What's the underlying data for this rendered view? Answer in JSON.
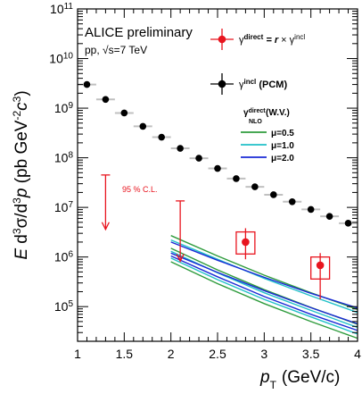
{
  "chart_data": {
    "type": "scatter",
    "x_axis": {
      "label": "p",
      "label_sub": "T",
      "label_unit": "(GeV/c)",
      "min": 1.0,
      "max": 4.0,
      "ticks": [
        1,
        1.5,
        2,
        2.5,
        3,
        3.5,
        4
      ],
      "tick_labels": [
        "1",
        "1.5",
        "2",
        "2.5",
        "3",
        "3.5",
        "4"
      ]
    },
    "y_axis": {
      "label": "E d³σ/d³p (pb GeV⁻²c³)",
      "scale": "log",
      "min": 20000,
      "max": 100000000000,
      "decades": [
        5,
        6,
        7,
        8,
        9,
        10,
        11
      ]
    },
    "annotations": {
      "experiment": "ALICE preliminary",
      "system": "pp, √s=7 TeV",
      "cl_label": "95 % C.L."
    },
    "legend": {
      "position": "top-right",
      "direct_entry": "γ^direct = r × γ^incl",
      "incl_entry": "γ^incl (PCM)",
      "nlo_title": "γ^direct_NLO (W.V.)",
      "mu_entries": [
        "μ=0.5",
        "μ=1.0",
        "μ=2.0"
      ]
    },
    "incl_series": {
      "name": "γ^incl (PCM)",
      "color": "#000000",
      "points": [
        {
          "x": 1.1,
          "y": 3000000000.0
        },
        {
          "x": 1.3,
          "y": 1500000000.0
        },
        {
          "x": 1.5,
          "y": 800000000.0
        },
        {
          "x": 1.7,
          "y": 430000000.0
        },
        {
          "x": 1.9,
          "y": 260000000.0
        },
        {
          "x": 2.1,
          "y": 155000000.0
        },
        {
          "x": 2.3,
          "y": 98000000.0
        },
        {
          "x": 2.5,
          "y": 61000000.0
        },
        {
          "x": 2.7,
          "y": 38000000.0
        },
        {
          "x": 2.9,
          "y": 26000000.0
        },
        {
          "x": 3.1,
          "y": 18000000.0
        },
        {
          "x": 3.3,
          "y": 13000000.0
        },
        {
          "x": 3.5,
          "y": 9100000.0
        },
        {
          "x": 3.7,
          "y": 6600000.0
        },
        {
          "x": 3.9,
          "y": 4800000.0
        }
      ],
      "x_half_width": 0.1
    },
    "direct_series": {
      "name": "γ^direct = r × γ^incl",
      "color": "#e8141e",
      "points": [
        {
          "x": 2.8,
          "y": 2000000.0,
          "err_lo": 900000.0,
          "err_hi": 3800000.0,
          "sys_lo": 1150000.0,
          "sys_hi": 3200000.0,
          "box_x0": 2.7,
          "box_x1": 2.9
        },
        {
          "x": 3.6,
          "y": 680000.0,
          "err_lo": 140000.0,
          "err_hi": 1200000.0,
          "sys_lo": 360000.0,
          "sys_hi": 1000000.0,
          "box_x0": 3.5,
          "box_x1": 3.7
        }
      ]
    },
    "upper_limits": [
      {
        "x": 1.3,
        "y_top": 45000000.0,
        "y_bottom": 3600000.0
      },
      {
        "x": 2.1,
        "y_top": 13500000.0,
        "y_bottom": 820000.0
      }
    ],
    "nlo_curves": [
      {
        "mu": "μ=0.5",
        "color": "#2e9b3c",
        "lines": [
          {
            "x": [
              2.0,
              2.5,
              3.0,
              3.5,
              4.0
            ],
            "y": [
              2700000.0,
              1050000.0,
              430000.0,
              190000.0,
              88000.0
            ]
          },
          {
            "x": [
              2.0,
              2.5,
              3.0,
              3.5,
              4.0
            ],
            "y": [
              1500000.0,
              550000.0,
              220000.0,
              96000.0,
              44000.0
            ]
          },
          {
            "x": [
              2.0,
              2.5,
              3.0,
              3.5,
              4.0
            ],
            "y": [
              800000.0,
              290000.0,
              115000.0,
              50000.0,
              23000.0
            ]
          }
        ]
      },
      {
        "mu": "μ=1.0",
        "color": "#20c0c8",
        "lines": [
          {
            "x": [
              2.0,
              2.5,
              3.0,
              3.5,
              4.0
            ],
            "y": [
              2200000.0,
              900000.0,
              370000.0,
              165000.0,
              76000.0
            ]
          },
          {
            "x": [
              2.0,
              2.5,
              3.0,
              3.5,
              4.0
            ],
            "y": [
              1300000.0,
              480000.0,
              190000.0,
              84000.0,
              38000.0
            ]
          },
          {
            "x": [
              2.0,
              2.5,
              3.0,
              3.5,
              4.0
            ],
            "y": [
              950000.0,
              350000.0,
              140000.0,
              62000.0,
              28000.0
            ]
          }
        ]
      },
      {
        "mu": "μ=2.0",
        "color": "#1a2ad6",
        "lines": [
          {
            "x": [
              2.0,
              2.5,
              3.0,
              3.5,
              4.0
            ],
            "y": [
              2000000.0,
              860000.0,
              390000.0,
              185000.0,
              94000.0
            ]
          },
          {
            "x": [
              2.0,
              2.5,
              3.0,
              3.5,
              4.0
            ],
            "y": [
              1200000.0,
              490000.0,
              210000.0,
              95000.0,
              45000.0
            ]
          },
          {
            "x": [
              2.0,
              2.5,
              3.0,
              3.5,
              4.0
            ],
            "y": [
              1050000.0,
              400000.0,
              160000.0,
              70000.0,
              33000.0
            ]
          }
        ]
      }
    ]
  }
}
